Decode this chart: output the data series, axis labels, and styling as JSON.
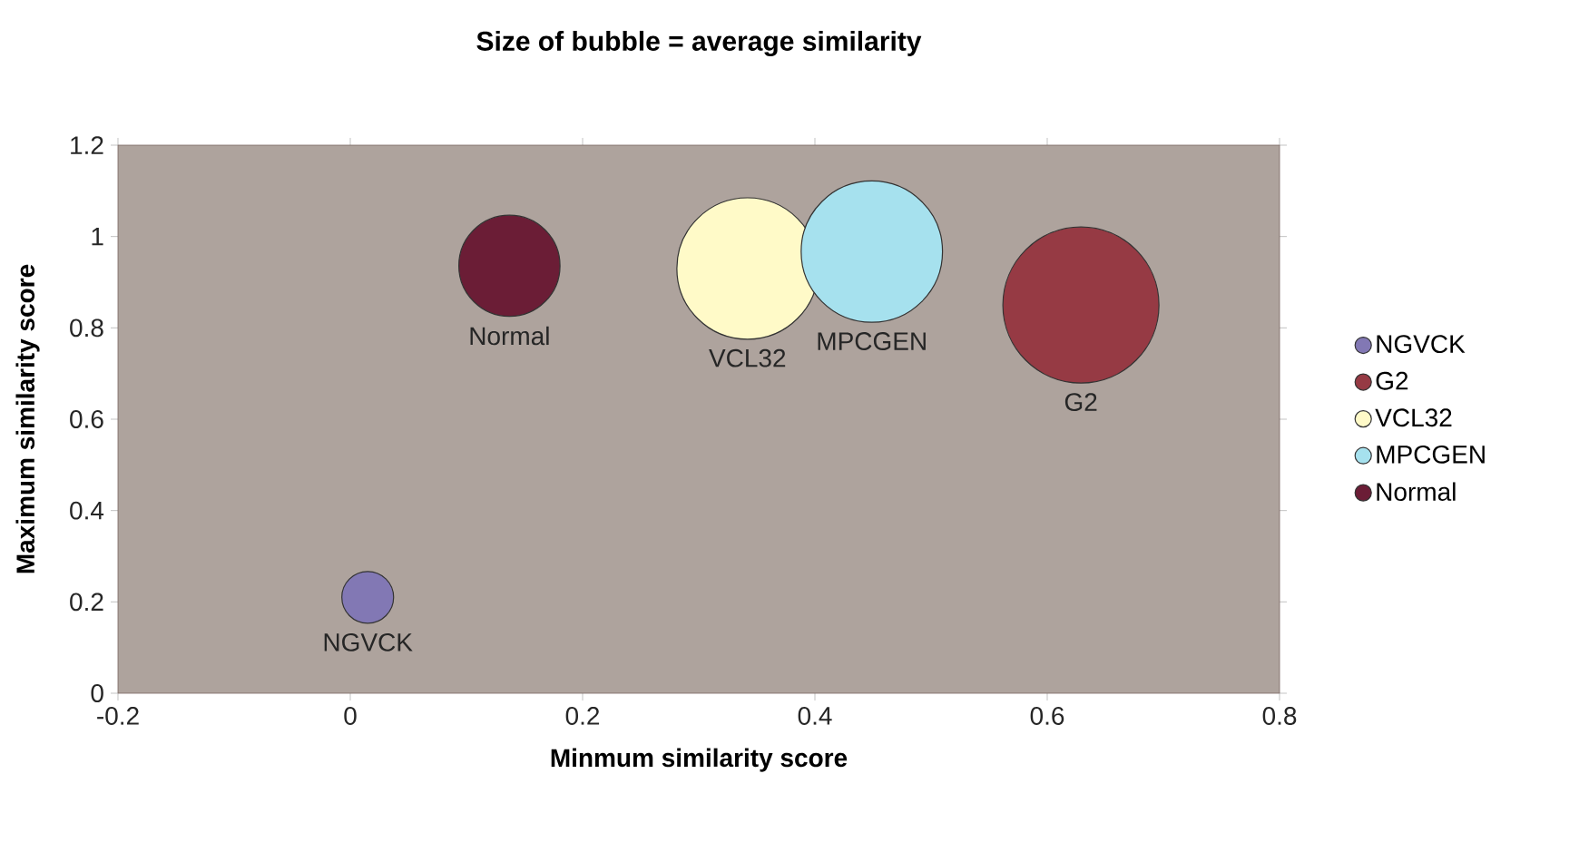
{
  "chart_data": {
    "type": "bubble",
    "title": "Size of bubble = average similarity",
    "xlabel": "Minmum similarity score",
    "ylabel": "Maximum similarity score",
    "xlim": [
      -0.2,
      0.8
    ],
    "xticks": [
      -0.2,
      0,
      0.2,
      0.4,
      0.6,
      0.8
    ],
    "ylim": [
      0,
      1.2
    ],
    "yticks": [
      0,
      0.2,
      0.4,
      0.6,
      0.8,
      1,
      1.2
    ],
    "legend": "right",
    "grid": false,
    "series": [
      {
        "name": "NGVCK",
        "color": "#8278b4",
        "x": [
          0.015
        ],
        "values": [
          0.21
        ],
        "sizes": [
          0.11
        ]
      },
      {
        "name": "G2",
        "color": "#963a44",
        "x": [
          0.629
        ],
        "values": [
          0.85
        ],
        "sizes": [
          1
        ]
      },
      {
        "name": "VCL32",
        "color": "#fffac8",
        "x": [
          0.342
        ],
        "values": [
          0.93
        ],
        "sizes": [
          0.82
        ]
      },
      {
        "name": "MPCGEN",
        "color": "#a6e1ee",
        "x": [
          0.449
        ],
        "values": [
          0.967
        ],
        "sizes": [
          0.82
        ]
      },
      {
        "name": "Normal",
        "color": "#6b1d36",
        "x": [
          0.137
        ],
        "values": [
          0.936
        ],
        "sizes": [
          0.42
        ]
      }
    ]
  }
}
